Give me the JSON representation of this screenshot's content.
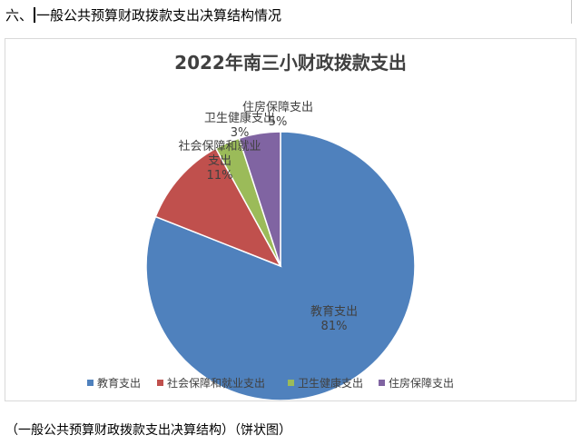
{
  "page": {
    "heading_prefix": "六、",
    "heading_text": "一般公共预算财政拨款支出决算结构情况",
    "caption": "（一般公共预算财政拨款支出决算结构）（饼状图）"
  },
  "chart_data": {
    "type": "pie",
    "title": "2022年南三小财政拨款支出",
    "categories": [
      "教育支出",
      "社会保障和就业支出",
      "卫生健康支出",
      "住房保障支出"
    ],
    "values": [
      81,
      11,
      3,
      5
    ],
    "percent_labels": [
      "81%",
      "11%",
      "3%",
      "5%"
    ],
    "colors": [
      "#4f81bd",
      "#c0504d",
      "#9bbb59",
      "#8064a2"
    ],
    "legend_position": "bottom",
    "legend": [
      "教育支出",
      "社会保障和就业支出",
      "卫生健康支出",
      "住房保障支出"
    ]
  }
}
